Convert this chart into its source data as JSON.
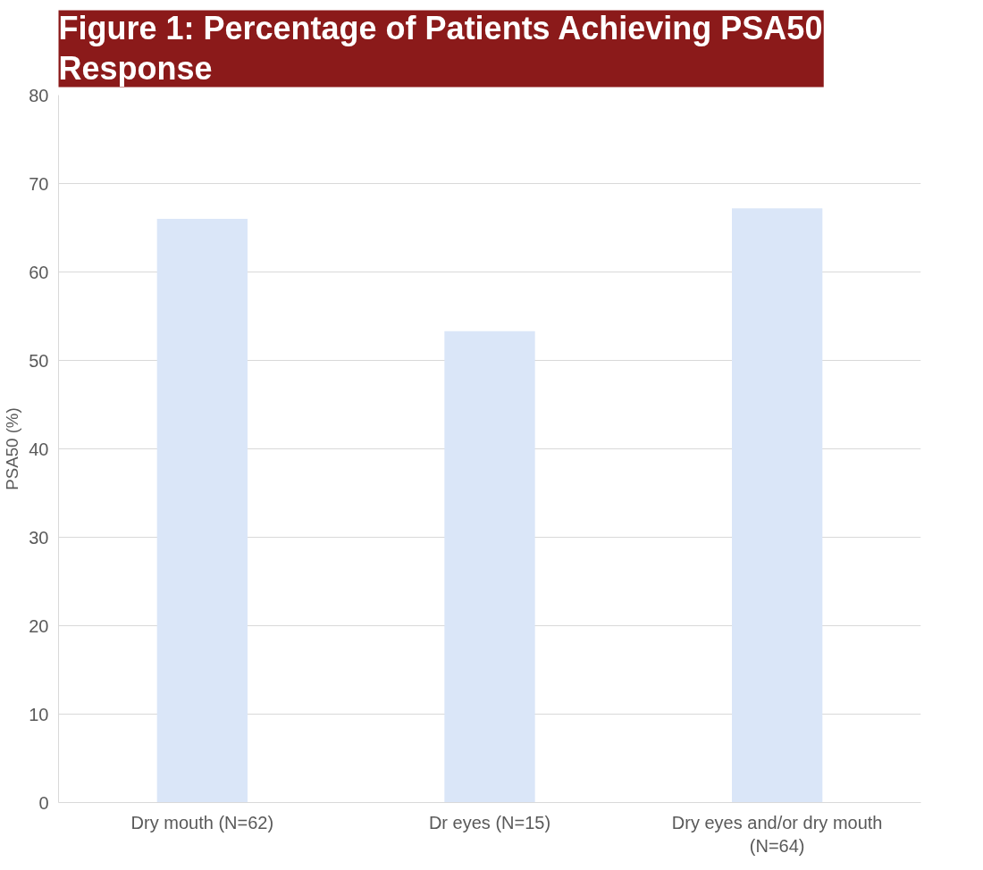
{
  "chart_data": {
    "type": "bar",
    "title": "Figure 1: Percentage of Patients Achieving PSA50 Response",
    "ylabel": "PSA50 (%)",
    "categories": [
      "Dry mouth (N=62)",
      "Dr eyes (N=15)",
      "Dry eyes and/or dry mouth (N=64)"
    ],
    "values": [
      66,
      53.3,
      67.2
    ],
    "color": "#dae6f8",
    "ylim": [
      0,
      80
    ],
    "yticks": [
      0,
      10,
      20,
      30,
      40,
      50,
      60,
      70,
      80
    ],
    "grid": "y"
  }
}
